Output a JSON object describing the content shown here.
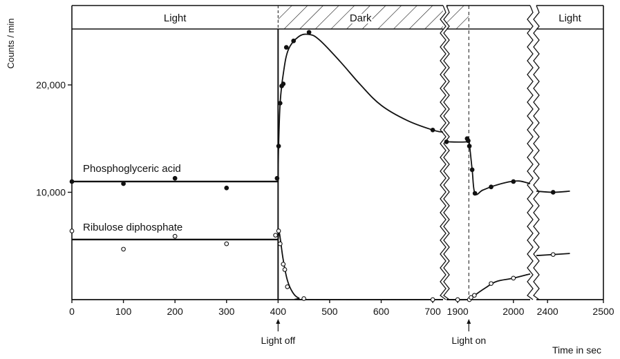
{
  "chart_data": {
    "type": "line",
    "ylabel": "Counts / min",
    "xlabel": "Time in sec",
    "ylim": [
      0,
      27500
    ],
    "y_ticks": [
      {
        "value": 10000,
        "label": "10,000"
      },
      {
        "value": 20000,
        "label": "20,000"
      }
    ],
    "x_ticks": [
      {
        "value": 0,
        "label": "0"
      },
      {
        "value": 100,
        "label": "100"
      },
      {
        "value": 200,
        "label": "200"
      },
      {
        "value": 300,
        "label": "300"
      },
      {
        "value": 400,
        "label": "400"
      },
      {
        "value": 500,
        "label": "500"
      },
      {
        "value": 600,
        "label": "600"
      },
      {
        "value": 700,
        "label": "700"
      },
      {
        "value": 1900,
        "label": "1900"
      },
      {
        "value": 2000,
        "label": "2000"
      },
      {
        "value": 2400,
        "label": "2400"
      },
      {
        "value": 2500,
        "label": "2500"
      }
    ],
    "axis_segments": [
      {
        "from": 0,
        "to": 720
      },
      {
        "from": 1880,
        "to": 2030
      },
      {
        "from": 2380,
        "to": 2500
      }
    ],
    "light_bar": [
      {
        "label": "Light",
        "from": 0,
        "to": 400,
        "dark": false
      },
      {
        "label": "Dark",
        "from": 400,
        "to": 720,
        "dark": true
      },
      {
        "label": "",
        "from": 1880,
        "to": 1920,
        "dark": true
      },
      {
        "label": "",
        "from": 1920,
        "to": 2030,
        "dark": false
      },
      {
        "label": "Light",
        "from": 2380,
        "to": 2500,
        "dark": false
      }
    ],
    "annotations": [
      {
        "text": "Light off",
        "x": 400
      },
      {
        "text": "Light on",
        "x": 1920
      }
    ],
    "series": [
      {
        "name": "Phosphoglyceric acid",
        "marker": "filled",
        "points": [
          [
            0,
            11000
          ],
          [
            100,
            10800
          ],
          [
            200,
            11300
          ],
          [
            300,
            10400
          ],
          [
            398,
            11300
          ],
          [
            401,
            14300
          ],
          [
            404,
            18300
          ],
          [
            407,
            19900
          ],
          [
            410,
            20100
          ],
          [
            416,
            23500
          ],
          [
            430,
            24100
          ],
          [
            460,
            24900
          ],
          [
            700,
            15800
          ],
          [
            1880,
            14700
          ],
          [
            1917,
            15000
          ],
          [
            1919,
            14800
          ],
          [
            1921,
            14300
          ],
          [
            1926,
            12100
          ],
          [
            1931,
            9900
          ],
          [
            1960,
            10500
          ],
          [
            2000,
            11000
          ],
          [
            2410,
            10000
          ]
        ],
        "curves": [
          [
            [
              0,
              11000
            ],
            [
              400,
              11000
            ]
          ],
          [
            [
              400,
              11000
            ],
            [
              401,
              14300
            ],
            [
              404,
              18300
            ],
            [
              410,
              21000
            ],
            [
              420,
              23300
            ],
            [
              440,
              24500
            ],
            [
              460,
              24700
            ],
            [
              480,
              24200
            ],
            [
              520,
              22200
            ],
            [
              560,
              20000
            ],
            [
              600,
              18100
            ],
            [
              650,
              16700
            ],
            [
              700,
              15800
            ],
            [
              720,
              15600
            ]
          ],
          [
            [
              1880,
              14700
            ],
            [
              1917,
              14700
            ],
            [
              1919,
              15000
            ],
            [
              1921,
              14500
            ],
            [
              1926,
              12100
            ],
            [
              1931,
              9900
            ],
            [
              1945,
              10200
            ],
            [
              1965,
              10600
            ],
            [
              1990,
              10950
            ],
            [
              2010,
              11050
            ],
            [
              2030,
              10800
            ]
          ],
          [
            [
              2380,
              10100
            ],
            [
              2410,
              10000
            ],
            [
              2440,
              10100
            ]
          ]
        ]
      },
      {
        "name": "Ribulose diphosphate",
        "marker": "open",
        "points": [
          [
            0,
            6400
          ],
          [
            100,
            4700
          ],
          [
            200,
            5900
          ],
          [
            300,
            5200
          ],
          [
            395,
            6000
          ],
          [
            401,
            6400
          ],
          [
            404,
            5200
          ],
          [
            410,
            3300
          ],
          [
            413,
            2800
          ],
          [
            418,
            1200
          ],
          [
            450,
            100
          ],
          [
            700,
            0
          ],
          [
            1900,
            0
          ],
          [
            1921,
            0
          ],
          [
            1924,
            200
          ],
          [
            1930,
            400
          ],
          [
            1960,
            1500
          ],
          [
            2000,
            2000
          ],
          [
            2410,
            4200
          ]
        ],
        "curves": [
          [
            [
              0,
              5600
            ],
            [
              400,
              5600
            ]
          ],
          [
            [
              400,
              5600
            ],
            [
              402,
              6300
            ],
            [
              405,
              5400
            ],
            [
              410,
              3700
            ],
            [
              418,
              1800
            ],
            [
              428,
              700
            ],
            [
              440,
              150
            ],
            [
              460,
              0
            ],
            [
              720,
              0
            ]
          ],
          [
            [
              1880,
              0
            ],
            [
              1921,
              0
            ],
            [
              1924,
              150
            ],
            [
              1933,
              500
            ],
            [
              1950,
              1100
            ],
            [
              1970,
              1700
            ],
            [
              2000,
              2000
            ],
            [
              2030,
              2400
            ]
          ],
          [
            [
              2380,
              4100
            ],
            [
              2410,
              4200
            ],
            [
              2440,
              4300
            ]
          ]
        ]
      }
    ]
  }
}
